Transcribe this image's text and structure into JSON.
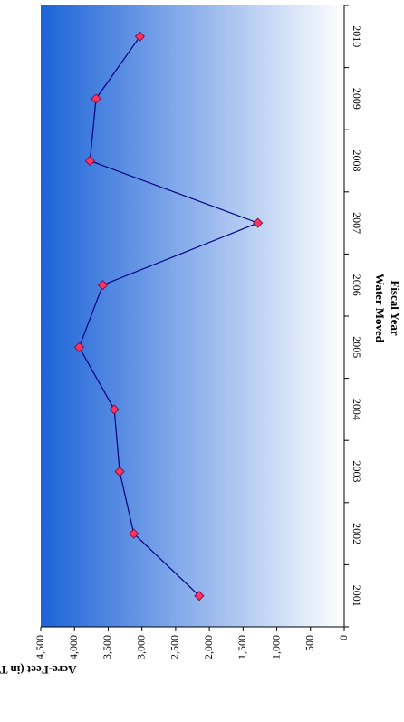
{
  "chart_data": {
    "type": "line",
    "title": "Water Moved",
    "xlabel": "Fiscal Year",
    "ylabel": "Acre-Feet (in Thousands)",
    "categories": [
      "2001",
      "2002",
      "2003",
      "2004",
      "2005",
      "2006",
      "2007",
      "2008",
      "2009",
      "2010"
    ],
    "series": [
      {
        "values": [
          2150,
          3120,
          3330,
          3410,
          3930,
          3580,
          1280,
          3770,
          3680,
          3030
        ]
      }
    ],
    "ylim": [
      0,
      4500
    ],
    "yticks": [
      "0",
      "500",
      "1,000",
      "1,500",
      "2,000",
      "2,500",
      "3,000",
      "3,500",
      "4,000",
      "4,500"
    ],
    "orientation": "rotated-90-clockwise",
    "colors": {
      "line": "#000080",
      "marker_fill": "#ff3366",
      "marker_stroke": "#7a0026",
      "bg_dark": "#1c63d8",
      "bg_light": "#ffffff"
    }
  }
}
